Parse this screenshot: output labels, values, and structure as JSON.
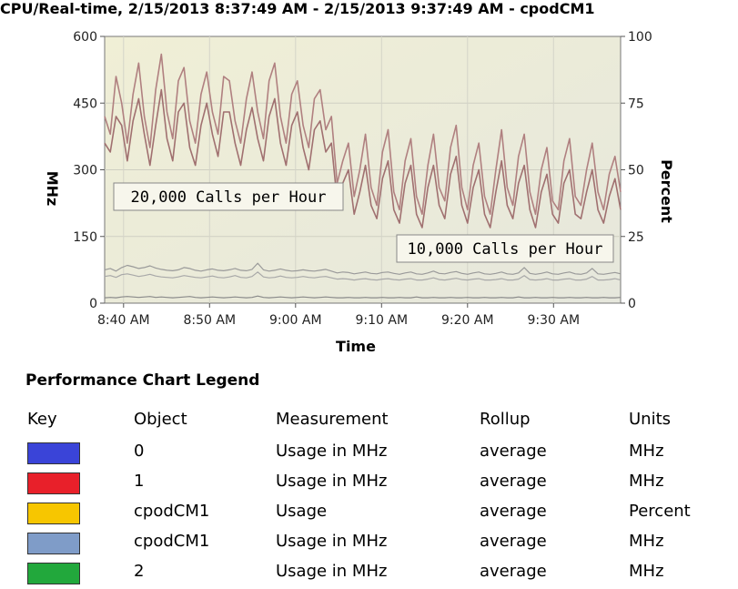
{
  "chart_data": {
    "type": "line",
    "title": "CPU/Real-time, 2/15/2013 8:37:49 AM - 2/15/2013 9:37:49 AM - cpodCM1",
    "xlabel": "Time",
    "ylabel": "MHz",
    "y2label": "Percent",
    "ylim": [
      0,
      600
    ],
    "y2lim": [
      0,
      100
    ],
    "yticks": [
      "0",
      "150",
      "300",
      "450",
      "600"
    ],
    "y2ticks": [
      "0",
      "25",
      "50",
      "75",
      "100"
    ],
    "xlim_minutes": [
      37.8,
      97.8
    ],
    "xticks": [
      {
        "label": "8:40 AM",
        "minute": 40
      },
      {
        "label": "8:50 AM",
        "minute": 50
      },
      {
        "label": "9:00 AM",
        "minute": 60
      },
      {
        "label": "9:10 AM",
        "minute": 70
      },
      {
        "label": "9:20 AM",
        "minute": 80
      },
      {
        "label": "9:30 AM",
        "minute": 90
      }
    ],
    "grid": true,
    "annotations": [
      {
        "text": "20,000 Calls per Hour"
      },
      {
        "text": "10,000 Calls per Hour"
      }
    ],
    "series": [
      {
        "name": "0",
        "color": "#b08080",
        "values": [
          420,
          380,
          510,
          450,
          360,
          470,
          540,
          420,
          350,
          480,
          560,
          430,
          370,
          500,
          530,
          410,
          360,
          470,
          520,
          430,
          380,
          510,
          500,
          410,
          360,
          460,
          520,
          430,
          370,
          500,
          540,
          420,
          360,
          470,
          500,
          400,
          350,
          460,
          480,
          390,
          420,
          270,
          320,
          360,
          240,
          300,
          380,
          260,
          220,
          340,
          390,
          250,
          210,
          320,
          370,
          240,
          200,
          310,
          380,
          260,
          230,
          350,
          400,
          260,
          210,
          310,
          360,
          240,
          200,
          300,
          390,
          260,
          220,
          330,
          380,
          250,
          200,
          300,
          350,
          230,
          210,
          320,
          370,
          240,
          220,
          300,
          360,
          250,
          210,
          290,
          330,
          250
        ]
      },
      {
        "name": "1",
        "color": "#a07070",
        "values": [
          360,
          340,
          420,
          400,
          320,
          410,
          460,
          380,
          310,
          400,
          480,
          370,
          320,
          430,
          450,
          350,
          310,
          400,
          450,
          380,
          330,
          430,
          430,
          360,
          310,
          390,
          440,
          370,
          320,
          420,
          460,
          360,
          310,
          400,
          430,
          350,
          300,
          390,
          410,
          340,
          360,
          230,
          270,
          300,
          200,
          250,
          310,
          220,
          190,
          280,
          320,
          210,
          180,
          270,
          310,
          200,
          170,
          260,
          310,
          220,
          190,
          290,
          330,
          220,
          180,
          260,
          300,
          200,
          170,
          250,
          320,
          220,
          190,
          270,
          310,
          210,
          170,
          250,
          290,
          200,
          180,
          270,
          300,
          200,
          190,
          250,
          300,
          210,
          180,
          240,
          280,
          210
        ]
      },
      {
        "name": "cpodCM1",
        "color": "#8a8a8a",
        "values": [
          12,
          13,
          12,
          14,
          15,
          14,
          13,
          14,
          15,
          13,
          14,
          13,
          12,
          13,
          14,
          15,
          13,
          12,
          13,
          14,
          13,
          12,
          13,
          14,
          13,
          12,
          13,
          16,
          13,
          12,
          13,
          14,
          13,
          12,
          13,
          14,
          13,
          12,
          13,
          14,
          13,
          12,
          12,
          13,
          12,
          12,
          13,
          12,
          12,
          13,
          12,
          12,
          13,
          12,
          12,
          14,
          12,
          12,
          13,
          12,
          12,
          13,
          12,
          12,
          13,
          12,
          12,
          13,
          12,
          12,
          13,
          12,
          12,
          14,
          12,
          12,
          13,
          12,
          12,
          13,
          12,
          12,
          13,
          12,
          12,
          13,
          12,
          12,
          13,
          12,
          12,
          13
        ]
      },
      {
        "name": "cpodCM1",
        "color": "#9a9a9a",
        "values": [
          75,
          78,
          72,
          80,
          85,
          82,
          78,
          80,
          84,
          79,
          76,
          74,
          73,
          75,
          80,
          78,
          74,
          72,
          75,
          77,
          74,
          73,
          75,
          78,
          74,
          73,
          76,
          90,
          75,
          72,
          74,
          77,
          74,
          72,
          73,
          75,
          73,
          72,
          74,
          76,
          72,
          68,
          70,
          69,
          66,
          68,
          70,
          67,
          66,
          69,
          70,
          67,
          65,
          68,
          70,
          66,
          65,
          68,
          72,
          67,
          66,
          69,
          71,
          67,
          65,
          68,
          70,
          66,
          65,
          67,
          70,
          66,
          65,
          68,
          80,
          67,
          65,
          67,
          70,
          66,
          65,
          68,
          70,
          66,
          65,
          68,
          78,
          66,
          65,
          67,
          69,
          66
        ]
      },
      {
        "name": "2",
        "color": "#a8a8a8",
        "values": [
          60,
          62,
          58,
          64,
          66,
          63,
          60,
          62,
          65,
          61,
          59,
          58,
          57,
          59,
          62,
          60,
          58,
          57,
          59,
          61,
          58,
          57,
          59,
          62,
          58,
          57,
          60,
          70,
          59,
          57,
          58,
          61,
          58,
          57,
          58,
          60,
          58,
          57,
          59,
          60,
          57,
          54,
          55,
          54,
          52,
          54,
          55,
          53,
          52,
          54,
          55,
          53,
          52,
          54,
          55,
          52,
          52,
          54,
          57,
          53,
          52,
          54,
          56,
          53,
          52,
          54,
          55,
          52,
          52,
          53,
          55,
          52,
          52,
          54,
          62,
          53,
          52,
          53,
          55,
          52,
          52,
          54,
          55,
          52,
          52,
          54,
          60,
          52,
          52,
          53,
          55,
          52
        ]
      }
    ]
  },
  "legend": {
    "title": "Performance Chart Legend",
    "headers": {
      "key": "Key",
      "object": "Object",
      "measurement": "Measurement",
      "rollup": "Rollup",
      "units": "Units"
    },
    "rows": [
      {
        "color": "#3a44d8",
        "object": "0",
        "measurement": "Usage in MHz",
        "rollup": "average",
        "units": "MHz"
      },
      {
        "color": "#e8202a",
        "object": "1",
        "measurement": "Usage in MHz",
        "rollup": "average",
        "units": "MHz"
      },
      {
        "color": "#f7c600",
        "object": "cpodCM1",
        "measurement": "Usage",
        "rollup": "average",
        "units": "Percent"
      },
      {
        "color": "#7f9cc8",
        "object": "cpodCM1",
        "measurement": "Usage in MHz",
        "rollup": "average",
        "units": "MHz"
      },
      {
        "color": "#22a83c",
        "object": "2",
        "measurement": "Usage in MHz",
        "rollup": "average",
        "units": "MHz"
      }
    ]
  }
}
